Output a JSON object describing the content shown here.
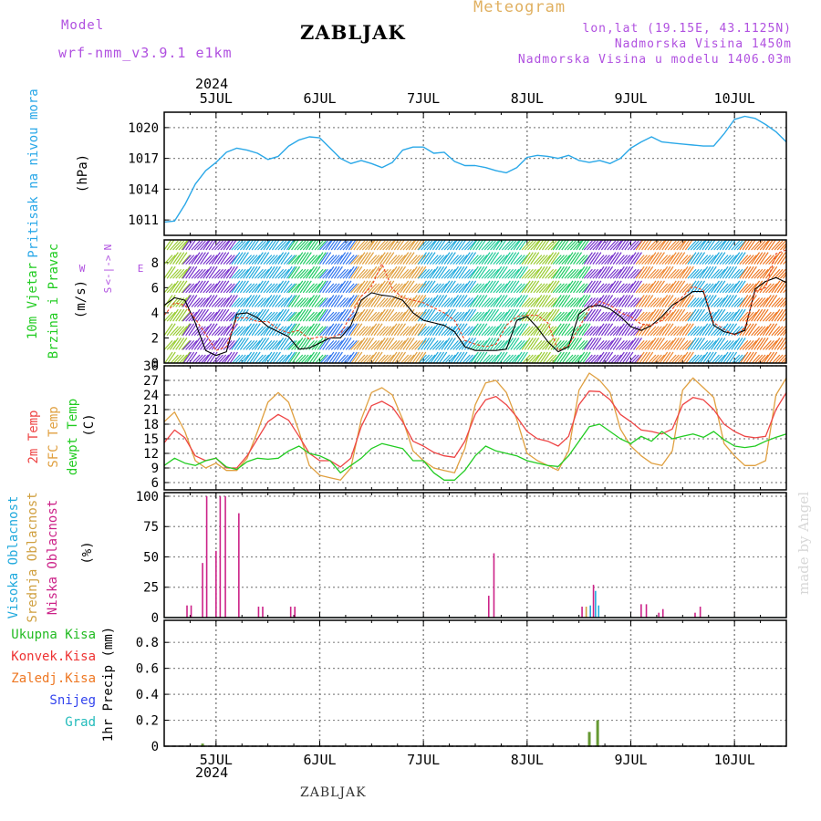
{
  "header": {
    "model_label": "Model",
    "model_name": "wrf-nmm_v3.9.1 e1km",
    "title": "ZABLJAK",
    "meteogram_label": "Meteogram",
    "location": "lon,lat (19.15E, 43.1125N)",
    "altitude": "Nadmorska Visina 1450m",
    "model_altitude": "Nadmorska Visina u modelu 1406.03m",
    "year": "2024"
  },
  "footer": {
    "station": "ZABLJAK",
    "year": "2024",
    "credit": "made by Angel"
  },
  "colors": {
    "pressure": "#2aa8e8",
    "temp2m": "#ee4444",
    "sfc_temp": "#e0a040",
    "dewpoint": "#22cc22",
    "high_cloud": "#22aadd",
    "mid_cloud": "#d0a040",
    "low_cloud": "#cc2288",
    "total_precip": "#22bb22",
    "conv_precip": "#ee3333",
    "frozen_precip": "#ee7722",
    "snow": "#3344ee",
    "hail": "#22bbbb",
    "wind_axis": "#b050e0"
  },
  "chart_data": [
    {
      "type": "line",
      "panel": "pressure",
      "ylabel": "Pritisak na nivou mora",
      "unit": "(hPa)",
      "ylim": [
        1009.5,
        1021.5
      ],
      "yticks": [
        1011,
        1014,
        1017,
        1020
      ],
      "x_days": [
        4.5,
        10.5
      ],
      "x_ticks": [
        "5JUL",
        "6JUL",
        "7JUL",
        "8JUL",
        "9JUL",
        "10JUL"
      ],
      "x": [
        4.5,
        4.6,
        4.7,
        4.8,
        4.9,
        5.0,
        5.1,
        5.2,
        5.3,
        5.4,
        5.5,
        5.6,
        5.7,
        5.8,
        5.9,
        6.0,
        6.1,
        6.2,
        6.3,
        6.4,
        6.5,
        6.6,
        6.7,
        6.8,
        6.9,
        7.0,
        7.1,
        7.2,
        7.3,
        7.4,
        7.5,
        7.6,
        7.7,
        7.8,
        7.9,
        8.0,
        8.1,
        8.2,
        8.3,
        8.4,
        8.5,
        8.6,
        8.7,
        8.8,
        8.9,
        9.0,
        9.1,
        9.2,
        9.3,
        9.4,
        9.5,
        9.6,
        9.7,
        9.8,
        9.9,
        10.0,
        10.1,
        10.2,
        10.3,
        10.4,
        10.5
      ],
      "values": [
        1010.8,
        1010.9,
        1012.5,
        1014.5,
        1015.8,
        1016.6,
        1017.6,
        1018.0,
        1017.8,
        1017.5,
        1016.9,
        1017.2,
        1018.2,
        1018.8,
        1019.1,
        1019.0,
        1018.0,
        1017.0,
        1016.5,
        1016.8,
        1016.5,
        1016.1,
        1016.6,
        1017.8,
        1018.1,
        1018.1,
        1017.5,
        1017.6,
        1016.7,
        1016.3,
        1016.3,
        1016.1,
        1015.8,
        1015.6,
        1016.1,
        1017.1,
        1017.3,
        1017.2,
        1017.0,
        1017.3,
        1016.8,
        1016.6,
        1016.8,
        1016.5,
        1017.0,
        1018.0,
        1018.6,
        1019.1,
        1018.6,
        1018.5,
        1018.4,
        1018.3,
        1018.2,
        1018.2,
        1019.4,
        1020.8,
        1021.1,
        1020.9,
        1020.3,
        1019.6,
        1018.6
      ]
    },
    {
      "type": "line",
      "panel": "wind",
      "ylabel": "10m Vjetar",
      "ylabel2": "Brzina i Pravac",
      "unit": "(m/s)",
      "compass": {
        "n": "N",
        "s": "S",
        "w": "W",
        "e": "E",
        "sep": "<-|->"
      },
      "ylim": [
        0,
        9.8
      ],
      "yticks": [
        0,
        2,
        4,
        6,
        8
      ],
      "x": [
        4.5,
        4.6,
        4.7,
        4.8,
        4.9,
        5.0,
        5.1,
        5.2,
        5.3,
        5.4,
        5.5,
        5.6,
        5.7,
        5.8,
        5.9,
        6.0,
        6.1,
        6.2,
        6.3,
        6.4,
        6.5,
        6.6,
        6.7,
        6.8,
        6.9,
        7.0,
        7.1,
        7.2,
        7.3,
        7.4,
        7.5,
        7.6,
        7.7,
        7.8,
        7.9,
        8.0,
        8.1,
        8.2,
        8.3,
        8.4,
        8.5,
        8.6,
        8.7,
        8.8,
        8.9,
        9.0,
        9.1,
        9.2,
        9.3,
        9.4,
        9.5,
        9.6,
        9.7,
        9.8,
        9.9,
        10.0,
        10.1,
        10.2,
        10.3,
        10.4,
        10.5
      ],
      "series": [
        {
          "values": [
            4.6,
            5.2,
            5.0,
            3.2,
            1.0,
            0.6,
            0.9,
            3.9,
            4.0,
            3.6,
            2.9,
            2.5,
            2.1,
            1.1,
            1.2,
            1.6,
            2.0,
            2.0,
            3.0,
            5.0,
            5.6,
            5.4,
            5.3,
            5.0,
            4.0,
            3.4,
            3.2,
            3.0,
            2.5,
            1.3,
            1.0,
            1.0,
            1.0,
            1.1,
            3.4,
            3.7,
            2.8,
            1.7,
            0.9,
            1.3,
            3.9,
            4.5,
            4.6,
            4.3,
            3.7,
            2.9,
            2.6,
            3.0,
            3.7,
            4.6,
            5.1,
            5.7,
            5.7,
            3.0,
            2.5,
            2.3,
            2.6,
            5.9,
            6.5,
            6.8,
            6.4
          ]
        },
        {
          "values": [
            3.8,
            4.8,
            4.6,
            3.5,
            2.3,
            1.0,
            1.3,
            3.6,
            3.6,
            3.3,
            3.3,
            2.7,
            2.4,
            2.6,
            1.9,
            2.1,
            2.0,
            2.3,
            3.8,
            5.3,
            6.1,
            7.9,
            5.9,
            5.2,
            5.0,
            4.8,
            4.4,
            4.0,
            3.4,
            1.8,
            1.5,
            1.3,
            1.5,
            3.0,
            3.7,
            3.8,
            3.8,
            3.2,
            1.0,
            1.4,
            2.8,
            4.3,
            4.9,
            4.6,
            4.0,
            3.7,
            3.1,
            3.0,
            3.4,
            4.3,
            5.3,
            6.1,
            5.8,
            3.2,
            2.7,
            2.2,
            2.8,
            5.7,
            6.0,
            8.7,
            9.0
          ]
        }
      ]
    },
    {
      "type": "line",
      "panel": "temperature",
      "ylabels": [
        "2m Temp",
        "SFC Temp",
        "dewpt Temp"
      ],
      "unit": "(C)",
      "ylim": [
        4.5,
        30
      ],
      "yticks": [
        6,
        9,
        12,
        15,
        18,
        21,
        24,
        27,
        30
      ],
      "x": [
        4.5,
        4.6,
        4.7,
        4.8,
        4.9,
        5.0,
        5.1,
        5.2,
        5.3,
        5.4,
        5.5,
        5.6,
        5.7,
        5.8,
        5.9,
        6.0,
        6.1,
        6.2,
        6.3,
        6.4,
        6.5,
        6.6,
        6.7,
        6.8,
        6.9,
        7.0,
        7.1,
        7.2,
        7.3,
        7.4,
        7.5,
        7.6,
        7.7,
        7.8,
        7.9,
        8.0,
        8.1,
        8.2,
        8.3,
        8.4,
        8.5,
        8.6,
        8.7,
        8.8,
        8.9,
        9.0,
        9.1,
        9.2,
        9.3,
        9.4,
        9.5,
        9.6,
        9.7,
        9.8,
        9.9,
        10.0,
        10.1,
        10.2,
        10.3,
        10.4,
        10.5
      ],
      "series": [
        {
          "name": "2m Temp",
          "values": [
            14.2,
            16.8,
            15.2,
            11.5,
            10.5,
            11.0,
            9.0,
            9.0,
            11.5,
            15.0,
            18.5,
            20.0,
            18.8,
            15.5,
            12.0,
            10.5,
            10.5,
            9.2,
            11.0,
            17.5,
            21.8,
            22.7,
            21.5,
            18.5,
            14.5,
            13.5,
            12.2,
            11.5,
            11.2,
            14.5,
            20.0,
            23.0,
            23.7,
            22.0,
            19.5,
            16.5,
            15.0,
            14.5,
            13.5,
            15.5,
            22.0,
            24.8,
            24.7,
            23.0,
            20.0,
            18.5,
            16.8,
            16.5,
            16.0,
            17.0,
            22.0,
            23.5,
            23.0,
            21.0,
            18.0,
            16.5,
            15.5,
            15.2,
            15.5,
            21.0,
            24.5
          ]
        },
        {
          "name": "SFC Temp",
          "values": [
            18.5,
            20.5,
            16.5,
            10.5,
            9.0,
            10.0,
            8.5,
            8.5,
            11.0,
            16.5,
            22.5,
            24.5,
            22.5,
            16.5,
            9.5,
            7.5,
            7.0,
            6.5,
            9.0,
            19.0,
            24.5,
            25.5,
            24.0,
            19.0,
            12.5,
            10.5,
            9.0,
            8.5,
            8.0,
            13.0,
            22.0,
            26.5,
            27.0,
            24.5,
            19.0,
            12.0,
            10.5,
            9.5,
            8.5,
            12.5,
            25.0,
            28.5,
            27.0,
            24.5,
            17.0,
            13.5,
            11.5,
            10.0,
            9.5,
            12.5,
            25.0,
            27.5,
            25.5,
            23.5,
            14.0,
            11.5,
            9.5,
            9.5,
            10.5,
            24.0,
            27.5
          ]
        },
        {
          "name": "dewpt Temp",
          "values": [
            9.5,
            11.0,
            10.0,
            9.5,
            10.5,
            11.0,
            9.2,
            8.7,
            10.3,
            11.0,
            10.8,
            11.0,
            12.5,
            13.5,
            12.0,
            11.5,
            10.5,
            8.0,
            9.5,
            11.0,
            13.0,
            14.0,
            13.5,
            13.0,
            10.5,
            10.5,
            8.0,
            6.5,
            6.5,
            8.5,
            11.5,
            13.5,
            12.5,
            12.0,
            11.5,
            10.5,
            10.0,
            9.5,
            9.3,
            11.5,
            14.5,
            17.5,
            18.0,
            16.5,
            15.0,
            14.0,
            15.5,
            14.5,
            16.5,
            15.0,
            15.5,
            16.0,
            15.3,
            16.5,
            14.8,
            13.5,
            13.2,
            13.5,
            14.5,
            15.3,
            16.0
          ]
        }
      ]
    },
    {
      "type": "bar",
      "panel": "cloud",
      "ylabels": [
        "Visoka Oblacnost",
        "Srednja Oblacnost",
        "Niska Oblacnost"
      ],
      "unit": "(%)",
      "ylim": [
        0,
        103
      ],
      "yticks": [
        0,
        25,
        50,
        75,
        100
      ],
      "bars": [
        {
          "x": 4.72,
          "value": 10,
          "layer": "low"
        },
        {
          "x": 4.76,
          "value": 10,
          "layer": "low"
        },
        {
          "x": 4.87,
          "value": 45,
          "layer": "low"
        },
        {
          "x": 4.91,
          "value": 100,
          "layer": "low"
        },
        {
          "x": 5.0,
          "value": 55,
          "layer": "low"
        },
        {
          "x": 5.04,
          "value": 100,
          "layer": "low"
        },
        {
          "x": 5.09,
          "value": 100,
          "layer": "low"
        },
        {
          "x": 5.22,
          "value": 86,
          "layer": "low"
        },
        {
          "x": 5.41,
          "value": 9,
          "layer": "low"
        },
        {
          "x": 5.45,
          "value": 9,
          "layer": "low"
        },
        {
          "x": 5.72,
          "value": 9,
          "layer": "low"
        },
        {
          "x": 5.76,
          "value": 9,
          "layer": "low"
        },
        {
          "x": 7.63,
          "value": 18,
          "layer": "low"
        },
        {
          "x": 7.68,
          "value": 53,
          "layer": "low"
        },
        {
          "x": 8.53,
          "value": 9,
          "layer": "low"
        },
        {
          "x": 8.57,
          "value": 9,
          "layer": "mid"
        },
        {
          "x": 8.61,
          "value": 10,
          "layer": "high"
        },
        {
          "x": 8.64,
          "value": 27,
          "layer": "low"
        },
        {
          "x": 8.66,
          "value": 22,
          "layer": "high"
        },
        {
          "x": 8.69,
          "value": 10,
          "layer": "high"
        },
        {
          "x": 9.1,
          "value": 11,
          "layer": "low"
        },
        {
          "x": 9.15,
          "value": 11,
          "layer": "low"
        },
        {
          "x": 9.27,
          "value": 4,
          "layer": "low"
        },
        {
          "x": 9.31,
          "value": 7,
          "layer": "low"
        },
        {
          "x": 9.62,
          "value": 4,
          "layer": "low"
        },
        {
          "x": 9.67,
          "value": 9,
          "layer": "low"
        }
      ]
    },
    {
      "type": "bar",
      "panel": "precip",
      "ylabels": [
        "Ukupna Kisa",
        "Konvek.Kisa",
        "Zaledj.Kisa",
        "Snijeg",
        "Grad"
      ],
      "axis_label": "1hr Precip (mm)",
      "ylim": [
        0,
        0.97
      ],
      "yticks": [
        0,
        0.2,
        0.4,
        0.6,
        0.8
      ],
      "bars": [
        {
          "x": 4.87,
          "value": 0.02
        },
        {
          "x": 8.6,
          "value": 0.11
        },
        {
          "x": 8.68,
          "value": 0.2
        }
      ]
    }
  ]
}
